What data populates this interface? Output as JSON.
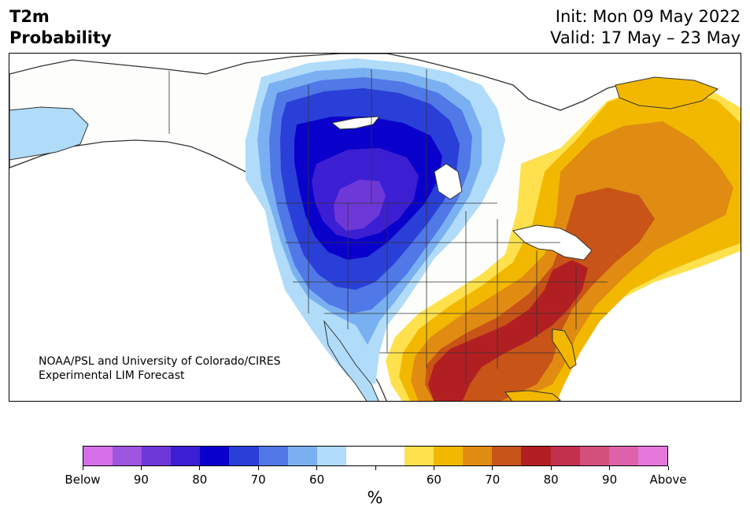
{
  "header": {
    "title_line1": "T2m",
    "title_line2": "Probability",
    "init": "Init: Mon 09 May 2022",
    "valid": "Valid: 17 May – 23 May"
  },
  "credit": {
    "line1": "NOAA/PSL and University of Colorado/CIRES",
    "line2": "Experimental LIM Forecast"
  },
  "colorbar": {
    "unit": "%",
    "colors": [
      "#d66ee8",
      "#9e55e0",
      "#6e38d8",
      "#3c1fd2",
      "#0a00cc",
      "#2a3fd8",
      "#5078e6",
      "#7ab0f2",
      "#b0dcfa",
      "#ffffff",
      "#ffffff",
      "#ffe14d",
      "#f2b800",
      "#e08c12",
      "#c85418",
      "#b21f22",
      "#c2304e",
      "#d3507c",
      "#dd62aa",
      "#e678dc"
    ],
    "tick_labels": [
      "Below",
      "90",
      "80",
      "70",
      "60",
      "",
      "60",
      "70",
      "80",
      "90",
      "Above"
    ]
  },
  "map": {
    "colors": {
      "below_60": "#b0dcfa",
      "below_65": "#7ab0f2",
      "below_70": "#5078e6",
      "below_75": "#2a3fd8",
      "below_80": "#0a00cc",
      "below_85": "#3c1fd2",
      "below_90": "#6e38d8",
      "above_55": "#ffe14d",
      "above_60": "#f2b800",
      "above_65": "#e08c12",
      "above_70": "#c85418",
      "above_75": "#b21f22",
      "land": "#fdfdfb",
      "border": "#333333"
    }
  }
}
